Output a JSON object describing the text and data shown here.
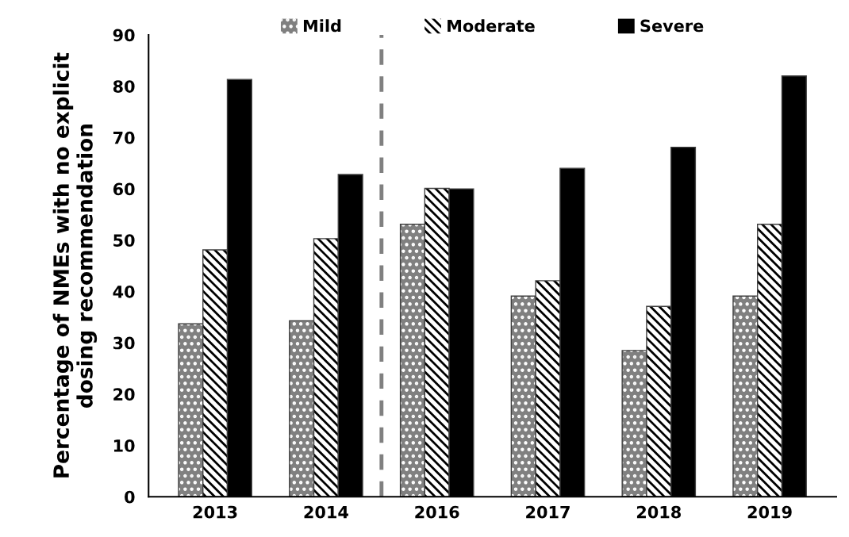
{
  "chart_data": {
    "type": "bar",
    "ylabel": "Percentage of NMEs with no explicit\ndosing recommendation",
    "categories": [
      "2013",
      "2014",
      "2016",
      "2017",
      "2018",
      "2019"
    ],
    "series": [
      {
        "name": "Mild",
        "color": "#808080",
        "values": [
          33.7,
          34.3,
          53.1,
          39.1,
          28.5,
          39.1
        ]
      },
      {
        "name": "Moderate",
        "color": "#ffffff",
        "values": [
          48.1,
          50.3,
          60.1,
          42.1,
          37.1,
          53.1
        ]
      },
      {
        "name": "Severe",
        "color": "#000000",
        "values": [
          81.3,
          62.8,
          60.0,
          64.0,
          68.1,
          82.0
        ]
      }
    ],
    "ylim": [
      0,
      90
    ],
    "yticks": [
      0,
      10,
      20,
      30,
      40,
      50,
      60,
      70,
      80,
      90
    ],
    "grid": false,
    "legend": "top"
  }
}
